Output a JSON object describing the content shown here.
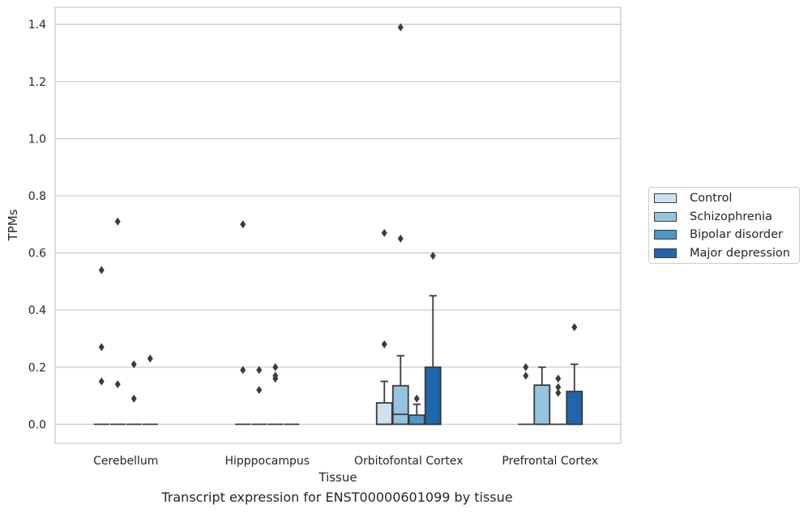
{
  "caption": "Transcript expression for ENST00000601099 by tissue",
  "chart_data": {
    "type": "boxplot",
    "xlabel": "Tissue",
    "ylabel": "TPMs",
    "ylim": [
      -0.067,
      1.46
    ],
    "yticks": [
      "0.0",
      "0.2",
      "0.4",
      "0.6",
      "0.8",
      "1.0",
      "1.2",
      "1.4"
    ],
    "grid": "horizontal",
    "legend_position": "right",
    "categories": [
      "Cerebellum",
      "Hipppocampus",
      "Orbitofontal Cortex",
      "Prefrontal Cortex"
    ],
    "series": [
      {
        "name": "Control",
        "color": "#d0e1f2",
        "boxes": [
          {
            "q1": 0,
            "median": 0,
            "q3": 0,
            "whisker_low": 0,
            "whisker_high": 0,
            "outliers": [
              0.54,
              0.27,
              0.15
            ]
          },
          {
            "q1": 0,
            "median": 0,
            "q3": 0,
            "whisker_low": 0,
            "whisker_high": 0,
            "outliers": [
              0.7,
              0.19
            ]
          },
          {
            "q1": 0,
            "median": 0,
            "q3": 0.075,
            "whisker_low": 0,
            "whisker_high": 0.15,
            "outliers": [
              0.67,
              0.28
            ]
          },
          {
            "q1": 0,
            "median": 0,
            "q3": 0,
            "whisker_low": 0,
            "whisker_high": 0,
            "outliers": [
              0.2,
              0.17
            ]
          }
        ]
      },
      {
        "name": "Schizophrenia",
        "color": "#94c4df",
        "boxes": [
          {
            "q1": 0,
            "median": 0,
            "q3": 0,
            "whisker_low": 0,
            "whisker_high": 0,
            "outliers": [
              0.71,
              0.14
            ]
          },
          {
            "q1": 0,
            "median": 0,
            "q3": 0,
            "whisker_low": 0,
            "whisker_high": 0,
            "outliers": [
              0.19,
              0.12
            ]
          },
          {
            "q1": 0,
            "median": 0.035,
            "q3": 0.135,
            "whisker_low": 0,
            "whisker_high": 0.24,
            "outliers": [
              1.39,
              0.65
            ]
          },
          {
            "q1": 0,
            "median": 0,
            "q3": 0.137,
            "whisker_low": 0,
            "whisker_high": 0.2,
            "outliers": []
          }
        ]
      },
      {
        "name": "Bipolar disorder",
        "color": "#4a98c9",
        "boxes": [
          {
            "q1": 0,
            "median": 0,
            "q3": 0,
            "whisker_low": 0,
            "whisker_high": 0,
            "outliers": [
              0.21,
              0.09
            ]
          },
          {
            "q1": 0,
            "median": 0,
            "q3": 0,
            "whisker_low": 0,
            "whisker_high": 0,
            "outliers": [
              0.2,
              0.17,
              0.16
            ]
          },
          {
            "q1": 0,
            "median": 0,
            "q3": 0.032,
            "whisker_low": 0,
            "whisker_high": 0.07,
            "outliers": [
              0.09
            ]
          },
          {
            "q1": 0,
            "median": 0,
            "q3": 0,
            "whisker_low": 0,
            "whisker_high": 0,
            "outliers": [
              0.16,
              0.13,
              0.11
            ]
          }
        ]
      },
      {
        "name": "Major depression",
        "color": "#2166ac",
        "boxes": [
          {
            "q1": 0,
            "median": 0,
            "q3": 0,
            "whisker_low": 0,
            "whisker_high": 0,
            "outliers": [
              0.23
            ]
          },
          {
            "q1": 0,
            "median": 0,
            "q3": 0,
            "whisker_low": 0,
            "whisker_high": 0,
            "outliers": []
          },
          {
            "q1": 0,
            "median": 0,
            "q3": 0.2,
            "whisker_low": 0,
            "whisker_high": 0.45,
            "outliers": [
              0.59
            ]
          },
          {
            "q1": 0,
            "median": 0,
            "q3": 0.115,
            "whisker_low": 0,
            "whisker_high": 0.21,
            "outliers": [
              0.34
            ]
          }
        ]
      }
    ]
  }
}
